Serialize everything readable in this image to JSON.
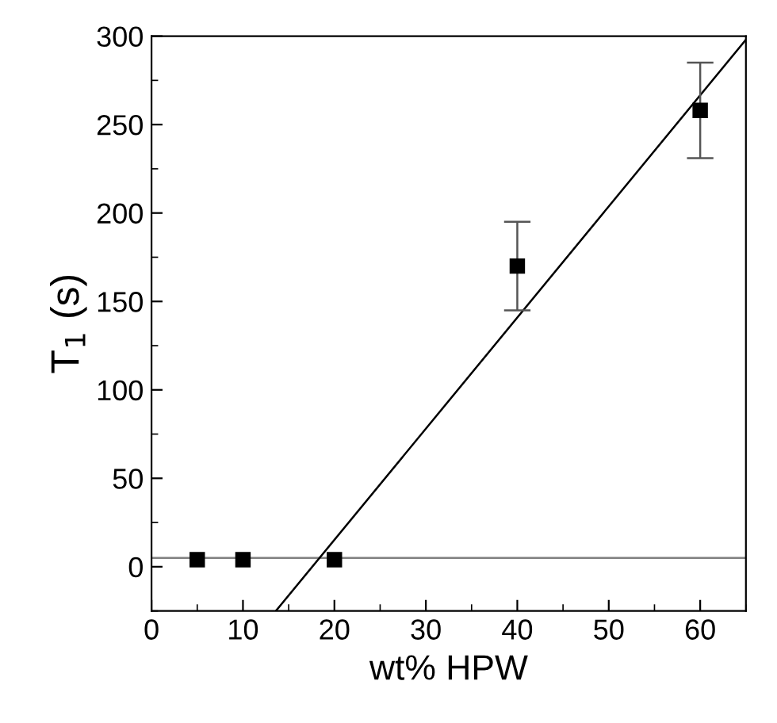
{
  "chart_data": {
    "type": "scatter",
    "xlabel": "wt% HPW",
    "ylabel": "T$_{1}$ (s)",
    "xlim": [
      0,
      65
    ],
    "ylim": [
      -25,
      300
    ],
    "xticks": [
      0,
      10,
      20,
      30,
      40,
      50,
      60
    ],
    "yticks": [
      0,
      50,
      100,
      150,
      200,
      250,
      300
    ],
    "grid": false,
    "legend": false,
    "series": [
      {
        "type": "line",
        "color": "#808080",
        "x": [
          0,
          65
        ],
        "values": [
          5,
          5
        ],
        "marker": "none",
        "line_style": "solid"
      },
      {
        "type": "line",
        "color": "#000000",
        "x": [
          13.6,
          65
        ],
        "values": [
          -25,
          298
        ],
        "marker": "none",
        "line_style": "solid"
      },
      {
        "color": "#000000",
        "marker": "square",
        "x": [
          5,
          10,
          20,
          40,
          60
        ],
        "values": [
          4,
          4,
          4,
          170,
          258
        ],
        "errors": [
          null,
          null,
          null,
          [
            145,
            195
          ],
          [
            231,
            285
          ]
        ]
      }
    ]
  }
}
